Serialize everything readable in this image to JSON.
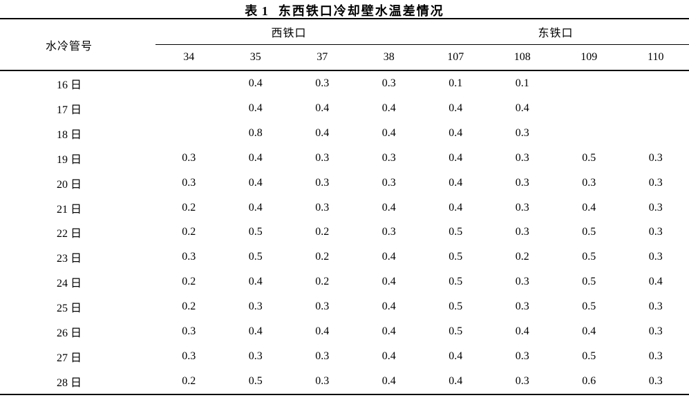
{
  "page": {
    "background": "#ffffff",
    "text_color": "#000000",
    "rule_color": "#000000"
  },
  "table": {
    "caption_label": "表 1",
    "caption_title": "东西铁口冷却壁水温差情况"
  },
  "chart_data": {
    "type": "table",
    "title": "表 1 东西铁口冷却壁水温差情况",
    "stub_header": "水冷管号",
    "column_groups": [
      {
        "label": "西铁口",
        "columns": [
          "34",
          "35",
          "37",
          "38"
        ]
      },
      {
        "label": "东铁口",
        "columns": [
          "107",
          "108",
          "109",
          "110"
        ]
      }
    ],
    "columns": [
      "34",
      "35",
      "37",
      "38",
      "107",
      "108",
      "109",
      "110"
    ],
    "rows": [
      {
        "label": "16 日",
        "values": [
          "",
          "0.4",
          "0.3",
          "0.3",
          "0.1",
          "0.1",
          "",
          ""
        ]
      },
      {
        "label": "17 日",
        "values": [
          "",
          "0.4",
          "0.4",
          "0.4",
          "0.4",
          "0.4",
          "",
          ""
        ]
      },
      {
        "label": "18 日",
        "values": [
          "",
          "0.8",
          "0.4",
          "0.4",
          "0.4",
          "0.3",
          "",
          ""
        ]
      },
      {
        "label": "19 日",
        "values": [
          "0.3",
          "0.4",
          "0.3",
          "0.3",
          "0.4",
          "0.3",
          "0.5",
          "0.3"
        ]
      },
      {
        "label": "20 日",
        "values": [
          "0.3",
          "0.4",
          "0.3",
          "0.3",
          "0.4",
          "0.3",
          "0.3",
          "0.3"
        ]
      },
      {
        "label": "21 日",
        "values": [
          "0.2",
          "0.4",
          "0.3",
          "0.4",
          "0.4",
          "0.3",
          "0.4",
          "0.3"
        ]
      },
      {
        "label": "22 日",
        "values": [
          "0.2",
          "0.5",
          "0.2",
          "0.3",
          "0.5",
          "0.3",
          "0.5",
          "0.3"
        ]
      },
      {
        "label": "23 日",
        "values": [
          "0.3",
          "0.5",
          "0.2",
          "0.4",
          "0.5",
          "0.2",
          "0.5",
          "0.3"
        ]
      },
      {
        "label": "24 日",
        "values": [
          "0.2",
          "0.4",
          "0.2",
          "0.4",
          "0.5",
          "0.3",
          "0.5",
          "0.4"
        ]
      },
      {
        "label": "25 日",
        "values": [
          "0.2",
          "0.3",
          "0.3",
          "0.4",
          "0.5",
          "0.3",
          "0.5",
          "0.3"
        ]
      },
      {
        "label": "26 日",
        "values": [
          "0.3",
          "0.4",
          "0.4",
          "0.4",
          "0.5",
          "0.4",
          "0.4",
          "0.3"
        ]
      },
      {
        "label": "27 日",
        "values": [
          "0.3",
          "0.3",
          "0.3",
          "0.4",
          "0.4",
          "0.3",
          "0.5",
          "0.3"
        ]
      },
      {
        "label": "28 日",
        "values": [
          "0.2",
          "0.5",
          "0.3",
          "0.4",
          "0.4",
          "0.3",
          "0.6",
          "0.3"
        ]
      }
    ]
  }
}
